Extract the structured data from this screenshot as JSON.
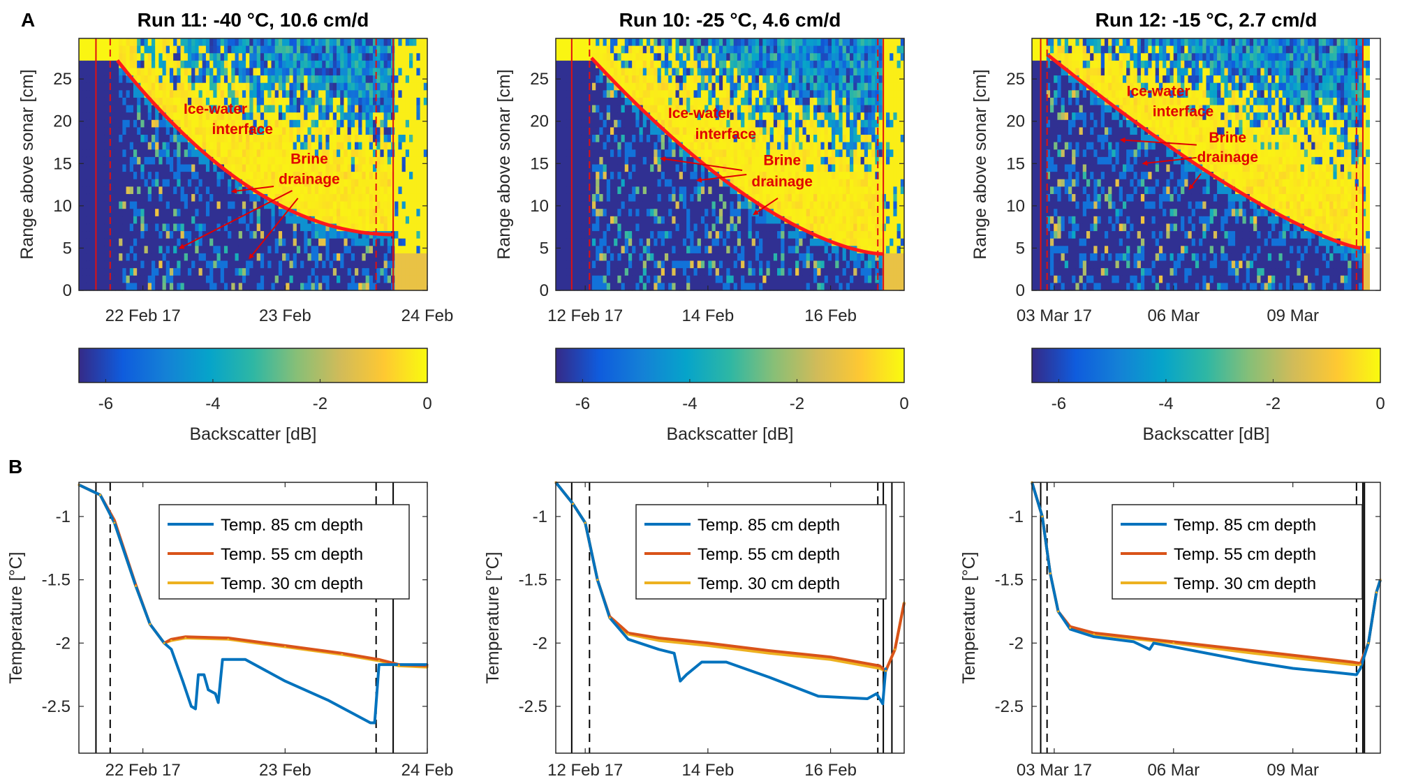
{
  "panel_labels": {
    "A": "A",
    "B": "B"
  },
  "colors": {
    "interface": "#ff1a1a",
    "vertical_red": "#e01010",
    "annotation": "#e00000",
    "axis": "#262626"
  },
  "colorbar": {
    "label": "Backscatter [dB]",
    "range": [
      -6.5,
      0
    ],
    "ticks": [
      -6,
      -4,
      -2,
      0
    ],
    "tick_labels": [
      "-6",
      "-4",
      "-2",
      "0"
    ],
    "colormap": [
      "#352a87",
      "#0f5cdd",
      "#1481d6",
      "#06a4ca",
      "#2eb7a4",
      "#87bf77",
      "#d1bb59",
      "#fec832",
      "#f9fb0e"
    ]
  },
  "annotations": {
    "ice1": "Ice-water",
    "ice2": "interface",
    "brine1": "Brine",
    "brine2": "drainage"
  },
  "legend": [
    "Temp. 85 cm depth",
    "Temp. 55 cm depth",
    "Temp. 30 cm depth"
  ],
  "chart_data": [
    {
      "type": "heatmap",
      "title": "Run 11: -40 °C, 10.6 cm/d",
      "ylabel": "Range above sonar [cm]",
      "xlim": [
        21.55,
        24.0
      ],
      "ylim": [
        0,
        29.8
      ],
      "xticks": [
        {
          "value": 22,
          "label": "22 Feb 17"
        },
        {
          "value": 23,
          "label": "23 Feb"
        },
        {
          "value": 24,
          "label": "24 Feb"
        }
      ],
      "yticks": [
        0,
        5,
        10,
        15,
        20,
        25
      ],
      "lines_solid": [
        21.67,
        23.76
      ],
      "lines_dashed": [
        21.77,
        23.64
      ],
      "interface": {
        "start": [
          21.82,
          27.2
        ],
        "end": [
          23.76,
          6.6
        ],
        "curvature": 2.0
      },
      "data_end": 24.0
    },
    {
      "type": "heatmap",
      "title": "Run 10: -25 °C, 4.6 cm/d",
      "ylabel": "Range above sonar [cm]",
      "xlim": [
        11.52,
        17.2
      ],
      "ylim": [
        0,
        29.8
      ],
      "xticks": [
        {
          "value": 12,
          "label": "12 Feb 17"
        },
        {
          "value": 14,
          "label": "14 Feb"
        },
        {
          "value": 16,
          "label": "16 Feb"
        }
      ],
      "yticks": [
        0,
        5,
        10,
        15,
        20,
        25
      ],
      "lines_solid": [
        11.78,
        16.86
      ],
      "lines_dashed": [
        12.07,
        16.77
      ],
      "interface": {
        "start": [
          12.1,
          27.5
        ],
        "end": [
          16.85,
          4.3
        ],
        "curvature": 1.6
      },
      "data_end": 17.2
    },
    {
      "type": "heatmap",
      "title": "Run 12: -15 °C, 2.7 cm/d",
      "ylabel": "Range above sonar [cm]",
      "xlim": [
        2.44,
        11.2
      ],
      "ylim": [
        0,
        29.8
      ],
      "xticks": [
        {
          "value": 3,
          "label": "03 Mar 17"
        },
        {
          "value": 6,
          "label": "06 Mar"
        },
        {
          "value": 9,
          "label": "09 Mar"
        }
      ],
      "yticks": [
        0,
        5,
        10,
        15,
        20,
        25
      ],
      "lines_solid": [
        2.66,
        10.76
      ],
      "lines_dashed": [
        2.82,
        10.6
      ],
      "interface": {
        "start": [
          2.85,
          27.8
        ],
        "end": [
          10.7,
          5.0
        ],
        "curvature": 1.3
      },
      "data_end": 10.9
    },
    {
      "type": "line",
      "ylabel": "Temperature [°C]",
      "xlim": [
        21.55,
        24.0
      ],
      "ylim": [
        -2.87,
        -0.73
      ],
      "xticks": [
        {
          "value": 22,
          "label": "22 Feb 17"
        },
        {
          "value": 23,
          "label": "23 Feb"
        },
        {
          "value": 24,
          "label": "24 Feb"
        }
      ],
      "yticks": [
        {
          "value": -1,
          "label": "-1"
        },
        {
          "value": -1.5,
          "label": "-1.5"
        },
        {
          "value": -2,
          "label": "-2"
        },
        {
          "value": -2.5,
          "label": "-2.5"
        }
      ],
      "lines_solid": [
        21.67,
        23.76
      ],
      "lines_dashed": [
        21.77,
        23.64
      ],
      "series": [
        {
          "name": "Temp. 85 cm depth",
          "color": "#0072bd",
          "points": [
            [
              21.55,
              -0.75
            ],
            [
              21.7,
              -0.83
            ],
            [
              21.8,
              -1.05
            ],
            [
              21.95,
              -1.55
            ],
            [
              22.05,
              -1.85
            ],
            [
              22.15,
              -2.0
            ],
            [
              22.2,
              -2.05
            ],
            [
              22.28,
              -2.3
            ],
            [
              22.34,
              -2.5
            ],
            [
              22.37,
              -2.52
            ],
            [
              22.39,
              -2.25
            ],
            [
              22.43,
              -2.25
            ],
            [
              22.46,
              -2.37
            ],
            [
              22.51,
              -2.4
            ],
            [
              22.53,
              -2.47
            ],
            [
              22.56,
              -2.13
            ],
            [
              22.72,
              -2.13
            ],
            [
              23.0,
              -2.3
            ],
            [
              23.3,
              -2.45
            ],
            [
              23.6,
              -2.63
            ],
            [
              23.63,
              -2.63
            ],
            [
              23.66,
              -2.17
            ],
            [
              24.0,
              -2.17
            ]
          ]
        },
        {
          "name": "Temp. 55 cm depth",
          "color": "#d95319",
          "points": [
            [
              21.55,
              -0.75
            ],
            [
              21.7,
              -0.83
            ],
            [
              21.8,
              -1.03
            ],
            [
              21.95,
              -1.54
            ],
            [
              22.05,
              -1.85
            ],
            [
              22.15,
              -2.0
            ],
            [
              22.2,
              -1.97
            ],
            [
              22.3,
              -1.95
            ],
            [
              22.6,
              -1.96
            ],
            [
              23.0,
              -2.02
            ],
            [
              23.4,
              -2.08
            ],
            [
              23.66,
              -2.13
            ],
            [
              23.8,
              -2.17
            ],
            [
              24.0,
              -2.18
            ]
          ]
        },
        {
          "name": "Temp. 30 cm depth",
          "color": "#edb120",
          "points": [
            [
              21.55,
              -0.75
            ],
            [
              21.7,
              -0.83
            ],
            [
              21.8,
              -1.05
            ],
            [
              21.95,
              -1.55
            ],
            [
              22.05,
              -1.85
            ],
            [
              22.15,
              -2.0
            ],
            [
              22.2,
              -1.98
            ],
            [
              22.3,
              -1.96
            ],
            [
              22.6,
              -1.97
            ],
            [
              23.0,
              -2.03
            ],
            [
              23.4,
              -2.09
            ],
            [
              23.66,
              -2.14
            ],
            [
              23.8,
              -2.18
            ],
            [
              24.0,
              -2.19
            ]
          ]
        }
      ]
    },
    {
      "type": "line",
      "ylabel": "Temperature [°C]",
      "xlim": [
        11.52,
        17.2
      ],
      "ylim": [
        -2.87,
        -0.73
      ],
      "xticks": [
        {
          "value": 12,
          "label": "12 Feb 17"
        },
        {
          "value": 14,
          "label": "14 Feb"
        },
        {
          "value": 16,
          "label": "16 Feb"
        }
      ],
      "yticks": [
        {
          "value": -1,
          "label": "-1"
        },
        {
          "value": -1.5,
          "label": "-1.5"
        },
        {
          "value": -2,
          "label": "-2"
        },
        {
          "value": -2.5,
          "label": "-2.5"
        }
      ],
      "lines_solid": [
        11.78,
        16.86,
        17.0
      ],
      "lines_dashed": [
        12.07,
        16.77
      ],
      "series": [
        {
          "name": "Temp. 85 cm depth",
          "color": "#0072bd",
          "points": [
            [
              11.52,
              -0.73
            ],
            [
              11.8,
              -0.9
            ],
            [
              12.0,
              -1.05
            ],
            [
              12.2,
              -1.5
            ],
            [
              12.4,
              -1.8
            ],
            [
              12.7,
              -1.97
            ],
            [
              13.2,
              -2.05
            ],
            [
              13.45,
              -2.08
            ],
            [
              13.55,
              -2.3
            ],
            [
              13.65,
              -2.25
            ],
            [
              13.9,
              -2.15
            ],
            [
              14.3,
              -2.15
            ],
            [
              15.0,
              -2.27
            ],
            [
              15.8,
              -2.42
            ],
            [
              16.6,
              -2.44
            ],
            [
              16.75,
              -2.4
            ],
            [
              16.85,
              -2.48
            ],
            [
              16.9,
              -2.2
            ]
          ]
        },
        {
          "name": "Temp. 55 cm depth",
          "color": "#d95319",
          "points": [
            [
              11.52,
              -0.73
            ],
            [
              11.8,
              -0.9
            ],
            [
              12.0,
              -1.05
            ],
            [
              12.2,
              -1.5
            ],
            [
              12.4,
              -1.79
            ],
            [
              12.7,
              -1.92
            ],
            [
              13.2,
              -1.96
            ],
            [
              14.0,
              -2.0
            ],
            [
              15.0,
              -2.06
            ],
            [
              16.0,
              -2.11
            ],
            [
              16.8,
              -2.18
            ],
            [
              16.9,
              -2.22
            ],
            [
              17.05,
              -2.05
            ],
            [
              17.2,
              -1.68
            ]
          ]
        },
        {
          "name": "Temp. 30 cm depth",
          "color": "#edb120",
          "points": [
            [
              11.52,
              -0.73
            ],
            [
              11.8,
              -0.9
            ],
            [
              12.0,
              -1.05
            ],
            [
              12.2,
              -1.5
            ],
            [
              12.4,
              -1.8
            ],
            [
              12.7,
              -1.93
            ],
            [
              13.2,
              -1.98
            ],
            [
              14.0,
              -2.02
            ],
            [
              15.0,
              -2.08
            ],
            [
              16.0,
              -2.13
            ],
            [
              16.8,
              -2.2
            ],
            [
              16.9,
              -2.22
            ],
            [
              17.05,
              -2.05
            ],
            [
              17.2,
              -1.68
            ]
          ]
        }
      ]
    },
    {
      "type": "line",
      "ylabel": "Temperature [°C]",
      "xlim": [
        2.44,
        11.2
      ],
      "ylim": [
        -2.87,
        -0.73
      ],
      "xticks": [
        {
          "value": 3,
          "label": "03 Mar 17"
        },
        {
          "value": 6,
          "label": "06 Mar"
        },
        {
          "value": 9,
          "label": "09 Mar"
        }
      ],
      "yticks": [
        {
          "value": -1,
          "label": "-1"
        },
        {
          "value": -1.5,
          "label": "-1.5"
        },
        {
          "value": -2,
          "label": "-2"
        },
        {
          "value": -2.5,
          "label": "-2.5"
        }
      ],
      "lines_solid": [
        2.66,
        10.76,
        10.8
      ],
      "lines_dashed": [
        2.82,
        10.6
      ],
      "series": [
        {
          "name": "Temp. 85 cm depth",
          "color": "#0072bd",
          "points": [
            [
              2.44,
              -0.73
            ],
            [
              2.7,
              -1.0
            ],
            [
              2.9,
              -1.45
            ],
            [
              3.1,
              -1.75
            ],
            [
              3.4,
              -1.89
            ],
            [
              4.0,
              -1.95
            ],
            [
              5.0,
              -1.99
            ],
            [
              5.4,
              -2.05
            ],
            [
              5.5,
              -2.0
            ],
            [
              6.0,
              -2.03
            ],
            [
              7.0,
              -2.09
            ],
            [
              8.0,
              -2.15
            ],
            [
              9.0,
              -2.2
            ],
            [
              10.0,
              -2.23
            ],
            [
              10.6,
              -2.25
            ],
            [
              10.7,
              -2.2
            ],
            [
              10.9,
              -2.0
            ],
            [
              11.1,
              -1.6
            ],
            [
              11.2,
              -1.5
            ]
          ]
        },
        {
          "name": "Temp. 55 cm depth",
          "color": "#d95319",
          "points": [
            [
              2.44,
              -0.73
            ],
            [
              2.7,
              -1.0
            ],
            [
              2.9,
              -1.45
            ],
            [
              3.1,
              -1.75
            ],
            [
              3.4,
              -1.87
            ],
            [
              4.0,
              -1.92
            ],
            [
              6.0,
              -1.99
            ],
            [
              8.0,
              -2.06
            ],
            [
              10.5,
              -2.15
            ],
            [
              10.7,
              -2.16
            ],
            [
              10.9,
              -2.0
            ],
            [
              11.1,
              -1.6
            ],
            [
              11.2,
              -1.5
            ]
          ]
        },
        {
          "name": "Temp. 30 cm depth",
          "color": "#edb120",
          "points": [
            [
              2.44,
              -0.73
            ],
            [
              2.7,
              -1.0
            ],
            [
              2.9,
              -1.45
            ],
            [
              3.1,
              -1.75
            ],
            [
              3.4,
              -1.88
            ],
            [
              4.0,
              -1.93
            ],
            [
              6.0,
              -2.0
            ],
            [
              8.0,
              -2.08
            ],
            [
              10.5,
              -2.17
            ],
            [
              10.7,
              -2.17
            ],
            [
              10.9,
              -2.0
            ],
            [
              11.1,
              -1.6
            ],
            [
              11.2,
              -1.5
            ]
          ]
        }
      ]
    }
  ]
}
